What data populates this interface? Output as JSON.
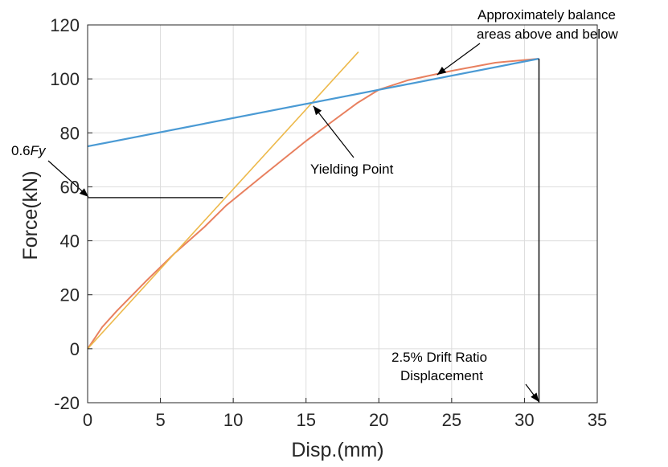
{
  "chart_data": {
    "type": "line",
    "title": "",
    "xlabel": "Disp.(mm)",
    "ylabel": "Force(kN)",
    "xlim": [
      0,
      35
    ],
    "ylim": [
      -20,
      120
    ],
    "xticks": [
      "0",
      "5",
      "10",
      "15",
      "20",
      "25",
      "30",
      "35"
    ],
    "yticks": [
      "-20",
      "0",
      "20",
      "40",
      "60",
      "80",
      "100",
      "120"
    ],
    "grid": true,
    "series": [
      {
        "color": "#e8805f",
        "x": [
          0,
          0.5,
          1,
          2,
          4,
          6,
          8,
          9.5,
          12,
          15,
          17,
          18.5,
          20,
          22,
          25,
          28,
          31
        ],
        "y": [
          0,
          4,
          8,
          14,
          25,
          35.5,
          45,
          53,
          64,
          77,
          85,
          91,
          96,
          99.5,
          103,
          106,
          107.5
        ]
      },
      {
        "color": "#edb94b",
        "x": [
          0,
          18.6
        ],
        "y": [
          0,
          110
        ]
      },
      {
        "color": "#4a9ad4",
        "x": [
          0,
          31
        ],
        "y": [
          75,
          107.5
        ]
      },
      {
        "color": "#000000",
        "x": [
          0,
          9.3,
          9.3
        ],
        "y": [
          56,
          56,
          56
        ]
      },
      {
        "color": "#000000",
        "x": [
          31,
          31
        ],
        "y": [
          107.5,
          -20
        ]
      }
    ],
    "annotations": {
      "fy_prefix": "0.6",
      "fy_var": "Fy",
      "yielding": "Yielding Point",
      "balance_line1": "Approximately balance",
      "balance_line2": "areas above and below",
      "drift_line1": "2.5% Drift Ratio",
      "drift_line2": "Displacement"
    }
  }
}
